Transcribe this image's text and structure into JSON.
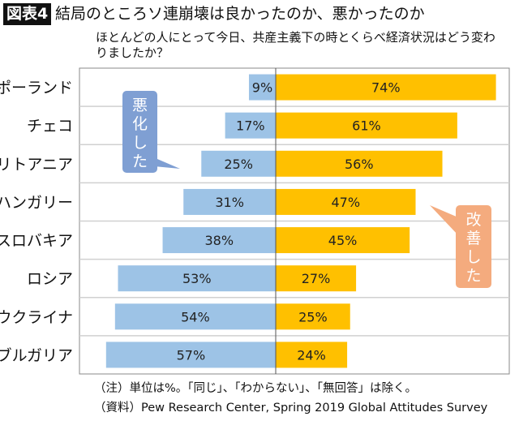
{
  "header": {
    "badge": "図表4",
    "title": "結局のところソ連崩壊は良かったのか、悪かったのか",
    "subtitle": "ほとんどの人にとって今日、共産主義下の時とくらべ経済状況はどう変わりましたか？"
  },
  "chart_data": {
    "type": "bar",
    "orientation": "horizontal-diverging",
    "categories": [
      "ポーランド",
      "チェコ",
      "リトアニア",
      "ハンガリー",
      "スロバキア",
      "ロシア",
      "ウクライナ",
      "ブルガリア"
    ],
    "series": [
      {
        "name": "悪化した",
        "values": [
          9,
          17,
          25,
          31,
          38,
          53,
          54,
          57
        ],
        "color": "#9dc3e6",
        "direction": "left"
      },
      {
        "name": "改善した",
        "values": [
          74,
          61,
          56,
          47,
          45,
          27,
          25,
          24
        ],
        "color": "#ffc000",
        "direction": "right"
      }
    ],
    "unit": "%",
    "grid": true,
    "callout_colors": {
      "worse": "#7f9fd3",
      "better": "#f4ab7e"
    }
  },
  "footer": {
    "note": "（注）単位は%。「同じ」、「わからない」、「無回答」は除く。",
    "source": "（資料）Pew Research Center, Spring 2019 Global Attitudes Survey"
  }
}
